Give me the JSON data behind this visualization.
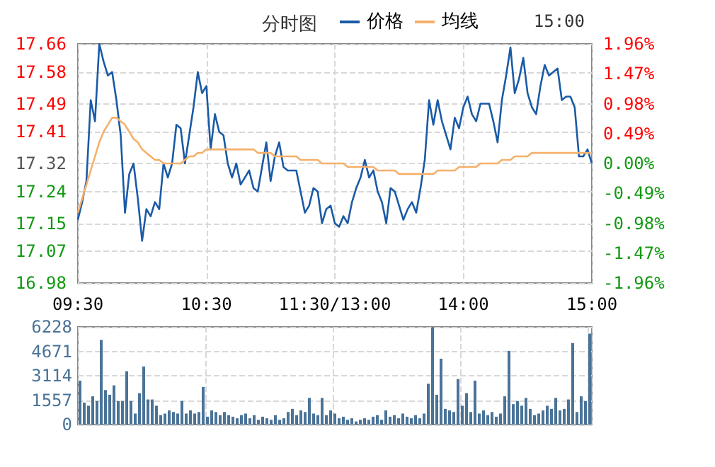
{
  "chart_data": [
    {
      "type": "line",
      "title": "分时图",
      "annotations": [
        "15:00"
      ],
      "legend": "top",
      "grid": true,
      "marker": "none",
      "line_style": "solid",
      "categories": [
        "09:30",
        null,
        null,
        null,
        null,
        null,
        null,
        null,
        null,
        null,
        null,
        null,
        null,
        null,
        null,
        null,
        null,
        null,
        null,
        null,
        null,
        null,
        null,
        null,
        null,
        null,
        null,
        null,
        null,
        null,
        "10:30",
        null,
        null,
        null,
        null,
        null,
        null,
        null,
        null,
        null,
        null,
        null,
        null,
        null,
        null,
        null,
        null,
        null,
        null,
        null,
        null,
        null,
        null,
        null,
        null,
        null,
        null,
        null,
        null,
        null,
        "11:30/13:00",
        null,
        null,
        null,
        null,
        null,
        null,
        null,
        null,
        null,
        null,
        null,
        null,
        null,
        null,
        null,
        null,
        null,
        null,
        null,
        null,
        null,
        null,
        null,
        null,
        null,
        null,
        null,
        null,
        null,
        "14:00",
        null,
        null,
        null,
        null,
        null,
        null,
        null,
        null,
        null,
        null,
        null,
        null,
        null,
        null,
        null,
        null,
        null,
        null,
        null,
        null,
        null,
        null,
        null,
        null,
        null,
        null,
        null,
        null,
        null,
        "15:00"
      ],
      "ylim": [
        16.98,
        17.66
      ],
      "yticks": [
        16.98,
        17.07,
        17.15,
        17.24,
        17.32,
        17.41,
        17.49,
        17.58,
        17.66
      ],
      "y2lim": [
        -1.96,
        1.96
      ],
      "y2ticks": [
        {
          "value": -1.96,
          "label": "-1.96%"
        },
        {
          "value": -1.47,
          "label": "-1.47%"
        },
        {
          "value": -0.98,
          "label": "-0.98%"
        },
        {
          "value": -0.49,
          "label": "-0.49%"
        },
        {
          "value": 0,
          "label": "0.00%"
        },
        {
          "value": 0.49,
          "label": "0.49%"
        },
        {
          "value": 0.98,
          "label": "0.98%"
        },
        {
          "value": 1.47,
          "label": "1.47%"
        },
        {
          "value": 1.96,
          "label": "1.96%"
        }
      ],
      "series": [
        {
          "name": "价格",
          "color": "#1a5aa6",
          "values": [
            17.16,
            17.21,
            17.27,
            17.5,
            17.44,
            17.66,
            17.61,
            17.57,
            17.58,
            17.5,
            17.4,
            17.18,
            17.29,
            17.32,
            17.22,
            17.1,
            17.19,
            17.17,
            17.21,
            17.19,
            17.32,
            17.28,
            17.32,
            17.43,
            17.42,
            17.32,
            17.4,
            17.48,
            17.58,
            17.52,
            17.54,
            17.36,
            17.46,
            17.41,
            17.4,
            17.32,
            17.28,
            17.32,
            17.26,
            17.28,
            17.3,
            17.25,
            17.24,
            17.31,
            17.38,
            17.27,
            17.34,
            17.38,
            17.31,
            17.3,
            17.3,
            17.3,
            17.24,
            17.18,
            17.2,
            17.25,
            17.24,
            17.15,
            17.19,
            17.2,
            17.15,
            17.14,
            17.17,
            17.15,
            17.21,
            17.25,
            17.28,
            17.33,
            17.28,
            17.3,
            17.24,
            17.21,
            17.15,
            17.25,
            17.24,
            17.2,
            17.16,
            17.19,
            17.21,
            17.18,
            17.25,
            17.33,
            17.5,
            17.43,
            17.5,
            17.44,
            17.4,
            17.36,
            17.45,
            17.42,
            17.48,
            17.51,
            17.46,
            17.44,
            17.49,
            17.49,
            17.49,
            17.44,
            17.38,
            17.5,
            17.57,
            17.65,
            17.52,
            17.56,
            17.62,
            17.52,
            17.48,
            17.46,
            17.54,
            17.6,
            17.57,
            17.58,
            17.59,
            17.5,
            17.51,
            17.51,
            17.48,
            17.34,
            17.34,
            17.36,
            17.32
          ]
        },
        {
          "name": "均线",
          "color": "#f5b06a",
          "values": [
            17.18,
            17.22,
            17.26,
            17.3,
            17.34,
            17.38,
            17.41,
            17.43,
            17.45,
            17.45,
            17.44,
            17.43,
            17.41,
            17.39,
            17.38,
            17.36,
            17.35,
            17.34,
            17.33,
            17.33,
            17.32,
            17.32,
            17.32,
            17.32,
            17.32,
            17.33,
            17.34,
            17.34,
            17.35,
            17.35,
            17.36,
            17.36,
            17.36,
            17.36,
            17.36,
            17.36,
            17.36,
            17.36,
            17.36,
            17.36,
            17.36,
            17.36,
            17.35,
            17.35,
            17.35,
            17.35,
            17.34,
            17.34,
            17.34,
            17.34,
            17.34,
            17.34,
            17.33,
            17.33,
            17.33,
            17.33,
            17.33,
            17.32,
            17.32,
            17.32,
            17.32,
            17.32,
            17.32,
            17.31,
            17.31,
            17.31,
            17.31,
            17.31,
            17.31,
            17.31,
            17.3,
            17.3,
            17.3,
            17.3,
            17.3,
            17.29,
            17.29,
            17.29,
            17.29,
            17.29,
            17.29,
            17.29,
            17.29,
            17.29,
            17.3,
            17.3,
            17.3,
            17.3,
            17.3,
            17.31,
            17.31,
            17.31,
            17.31,
            17.31,
            17.32,
            17.32,
            17.32,
            17.32,
            17.32,
            17.33,
            17.33,
            17.33,
            17.34,
            17.34,
            17.34,
            17.34,
            17.35,
            17.35,
            17.35,
            17.35,
            17.35,
            17.35,
            17.35,
            17.35,
            17.35,
            17.35,
            17.35,
            17.35,
            17.35,
            17.35,
            17.35
          ]
        }
      ]
    },
    {
      "type": "bar",
      "tick_labels": "y",
      "grid": true,
      "categories": [
        null,
        null,
        null,
        null,
        null,
        null,
        null,
        null,
        null,
        null,
        null,
        null,
        null,
        null,
        null,
        null,
        null,
        null,
        null,
        null,
        null,
        null,
        null,
        null,
        null,
        null,
        null,
        null,
        null,
        null,
        null,
        null,
        null,
        null,
        null,
        null,
        null,
        null,
        null,
        null,
        null,
        null,
        null,
        null,
        null,
        null,
        null,
        null,
        null,
        null,
        null,
        null,
        null,
        null,
        null,
        null,
        null,
        null,
        null,
        null,
        null,
        null,
        null,
        null,
        null,
        null,
        null,
        null,
        null,
        null,
        null,
        null,
        null,
        null,
        null,
        null,
        null,
        null,
        null,
        null,
        null,
        null,
        null,
        null,
        null,
        null,
        null,
        null,
        null,
        null,
        null,
        null,
        null,
        null,
        null,
        null,
        null,
        null,
        null,
        null,
        null,
        null,
        null,
        null,
        null,
        null,
        null,
        null,
        null,
        null,
        null,
        null,
        null,
        null,
        null,
        null,
        null,
        null,
        null,
        null,
        null
      ],
      "ylim": [
        0,
        6228
      ],
      "yticks": [
        0,
        1557,
        3114,
        4671,
        6228
      ],
      "series": [
        {
          "color": "#4a7398",
          "values": [
            2800,
            1400,
            1200,
            1800,
            1500,
            5400,
            2200,
            1900,
            2500,
            1500,
            1500,
            3400,
            1500,
            700,
            2000,
            3700,
            1600,
            1600,
            1200,
            600,
            700,
            900,
            800,
            700,
            1500,
            700,
            900,
            700,
            800,
            2400,
            500,
            900,
            800,
            600,
            800,
            600,
            500,
            400,
            600,
            700,
            400,
            600,
            300,
            500,
            400,
            300,
            600,
            300,
            400,
            800,
            1000,
            600,
            900,
            800,
            1700,
            700,
            600,
            1700,
            600,
            900,
            700,
            400,
            500,
            300,
            400,
            200,
            300,
            400,
            300,
            500,
            600,
            300,
            900,
            500,
            600,
            400,
            700,
            500,
            400,
            600,
            400,
            700,
            2600,
            6200,
            1900,
            4200,
            1000,
            900,
            800,
            2900,
            1200,
            2000,
            800,
            2800,
            700,
            900,
            600,
            800,
            500,
            700,
            1800,
            4700,
            1300,
            1500,
            1200,
            1700,
            1000,
            600,
            700,
            900,
            1200,
            1000,
            1700,
            900,
            1000,
            1600,
            5200,
            800,
            1800,
            1500,
            5800
          ]
        }
      ]
    }
  ]
}
